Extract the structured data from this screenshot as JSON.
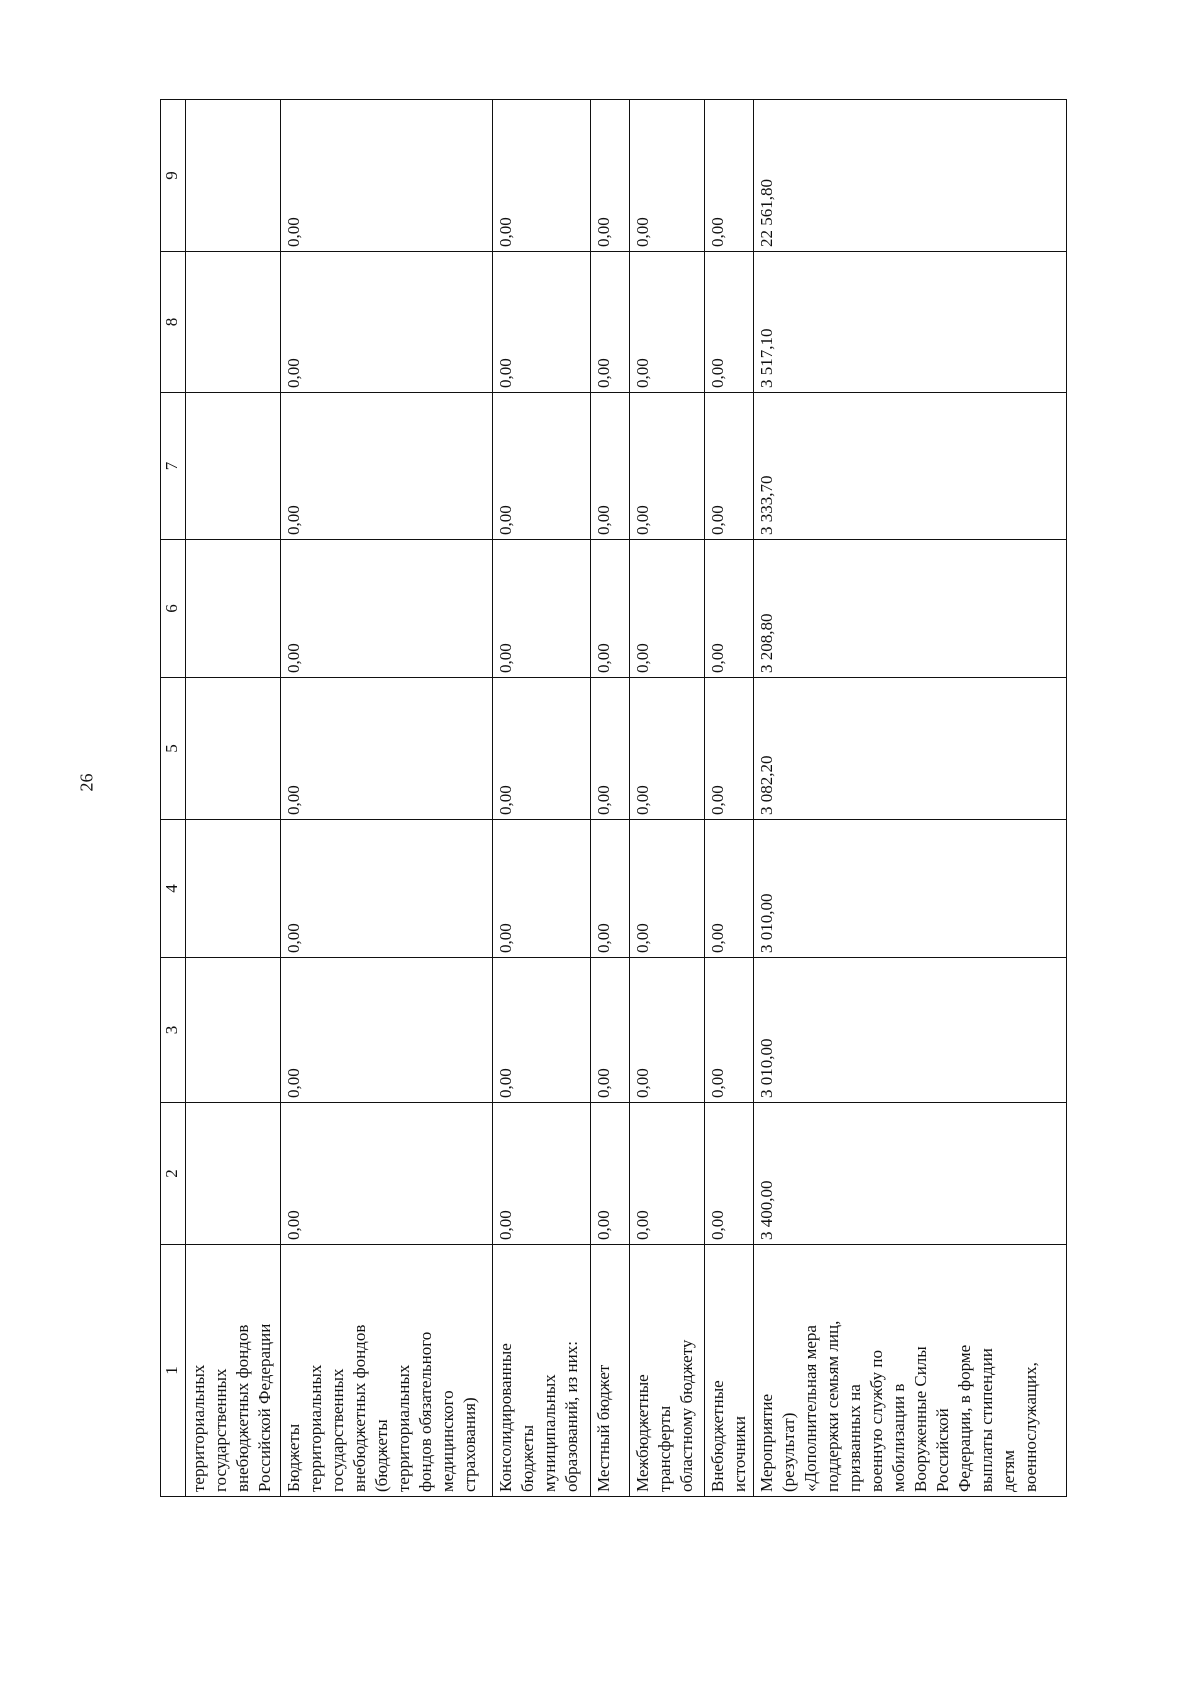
{
  "page_number": "26",
  "table": {
    "headers": [
      "1",
      "2",
      "3",
      "4",
      "5",
      "6",
      "7",
      "8",
      "9"
    ],
    "rows": [
      {
        "label": "территориальных\nгосударственных\nвнебюджетных фондов\nРоссийской Федерации",
        "values": [
          "",
          "",
          "",
          "",
          "",
          "",
          "",
          ""
        ]
      },
      {
        "label": "Бюджеты\nтерриториальных\nгосударственных\nвнебюджетных фондов\n(бюджеты\nтерриториальных\nфондов обязательного\nмедицинского\nстрахования)",
        "values": [
          "0,00",
          "0,00",
          "0,00",
          "0,00",
          "0,00",
          "0,00",
          "0,00",
          "0,00"
        ]
      },
      {
        "label": "Консолидированные\nбюджеты\nмуниципальных\nобразований, из них:",
        "values": [
          "0,00",
          "0,00",
          "0,00",
          "0,00",
          "0,00",
          "0,00",
          "0,00",
          "0,00"
        ]
      },
      {
        "label": "Местный бюджет",
        "values": [
          "0,00",
          "0,00",
          "0,00",
          "0,00",
          "0,00",
          "0,00",
          "0,00",
          "0,00"
        ]
      },
      {
        "label": "Межбюджетные\nтрансферты\nобластному бюджету",
        "values": [
          "0,00",
          "0,00",
          "0,00",
          "0,00",
          "0,00",
          "0,00",
          "0,00",
          "0,00"
        ]
      },
      {
        "label": "Внебюджетные\nисточники",
        "values": [
          "0,00",
          "0,00",
          "0,00",
          "0,00",
          "0,00",
          "0,00",
          "0,00",
          "0,00"
        ]
      },
      {
        "label": "Мероприятие\n(результат)\n«Дополнительная мера\nподдержки семьям лиц,\nпризванных на\nвоенную службу по\nмобилизации в\nВооруженные Силы\nРоссийской\nФедерации, в форме\nвыплаты стипендии\nдетям\nвоеннослужащих,",
        "values": [
          "3 400,00",
          "3 010,00",
          "3 010,00",
          "3 082,20",
          "3 208,80",
          "3 333,70",
          "3 517,10",
          "22 561,80"
        ]
      }
    ]
  }
}
